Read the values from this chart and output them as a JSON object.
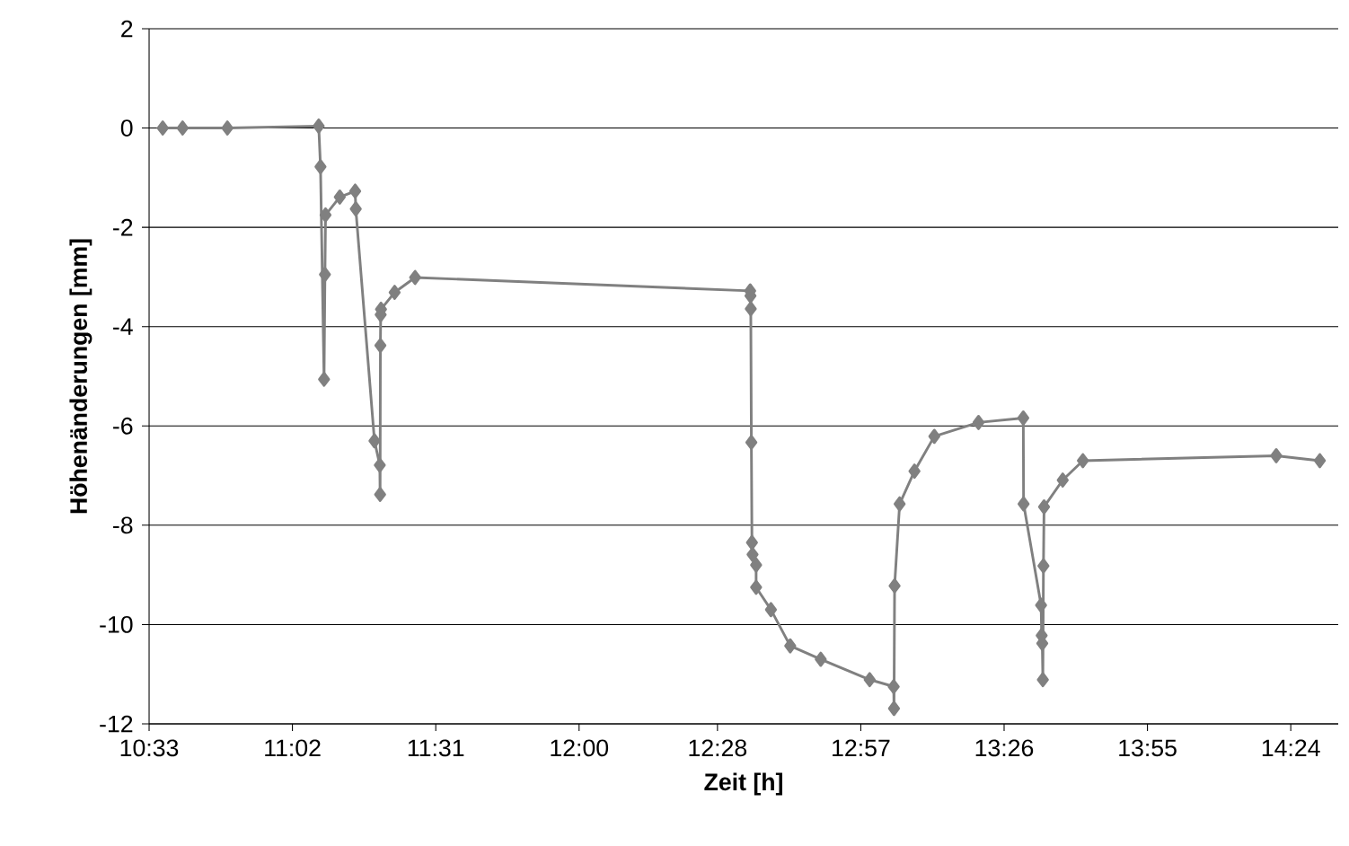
{
  "chart_data": {
    "type": "line",
    "xlabel": "Zeit [h]",
    "ylabel": "Höhenänderungen [mm]",
    "xlim": [
      10.55,
      14.56
    ],
    "ylim": [
      -12,
      2
    ],
    "xticks": [
      {
        "value": 10.55,
        "label": "10:33"
      },
      {
        "value": 11.0333,
        "label": "11:02"
      },
      {
        "value": 11.5167,
        "label": "11:31"
      },
      {
        "value": 12.0,
        "label": "12:00"
      },
      {
        "value": 12.4667,
        "label": "12:28"
      },
      {
        "value": 12.95,
        "label": "12:57"
      },
      {
        "value": 13.4333,
        "label": "13:26"
      },
      {
        "value": 13.9167,
        "label": "13:55"
      },
      {
        "value": 14.4,
        "label": "14:24"
      }
    ],
    "yticks": [
      -12,
      -10,
      -8,
      -6,
      -4,
      -2,
      0,
      2
    ],
    "grid": "y",
    "marker": "diamond",
    "line_style": "solid",
    "series": [
      {
        "color": "#808080",
        "x": [
          10.596,
          10.663,
          10.814,
          11.122,
          11.128,
          11.14,
          11.143,
          11.145,
          11.193,
          11.245,
          11.247,
          11.31,
          11.328,
          11.329,
          11.33,
          11.331,
          11.332,
          11.378,
          11.447,
          12.577,
          12.578,
          12.579,
          12.581,
          12.583,
          12.585,
          12.597,
          12.597,
          12.647,
          12.712,
          12.815,
          12.98,
          13.061,
          13.062,
          13.064,
          13.081,
          13.131,
          13.198,
          13.347,
          13.498,
          13.499,
          13.558,
          13.56,
          13.562,
          13.564,
          13.566,
          13.568,
          13.631,
          13.699,
          14.351,
          14.498
        ],
        "values": [
          0,
          0,
          0,
          0.04,
          -0.78,
          -5.06,
          -2.95,
          -1.75,
          -1.39,
          -1.27,
          -1.63,
          -6.3,
          -6.79,
          -7.38,
          -4.38,
          -3.76,
          -3.65,
          -3.31,
          -3.01,
          -3.28,
          -3.38,
          -3.64,
          -6.33,
          -8.35,
          -8.59,
          -8.8,
          -9.25,
          -9.7,
          -10.43,
          -10.7,
          -11.11,
          -11.25,
          -11.69,
          -9.22,
          -7.57,
          -6.91,
          -6.21,
          -5.93,
          -5.84,
          -7.57,
          -9.61,
          -10.22,
          -10.38,
          -11.11,
          -8.82,
          -7.63,
          -7.09,
          -6.7,
          -6.6,
          -6.7
        ]
      }
    ]
  }
}
